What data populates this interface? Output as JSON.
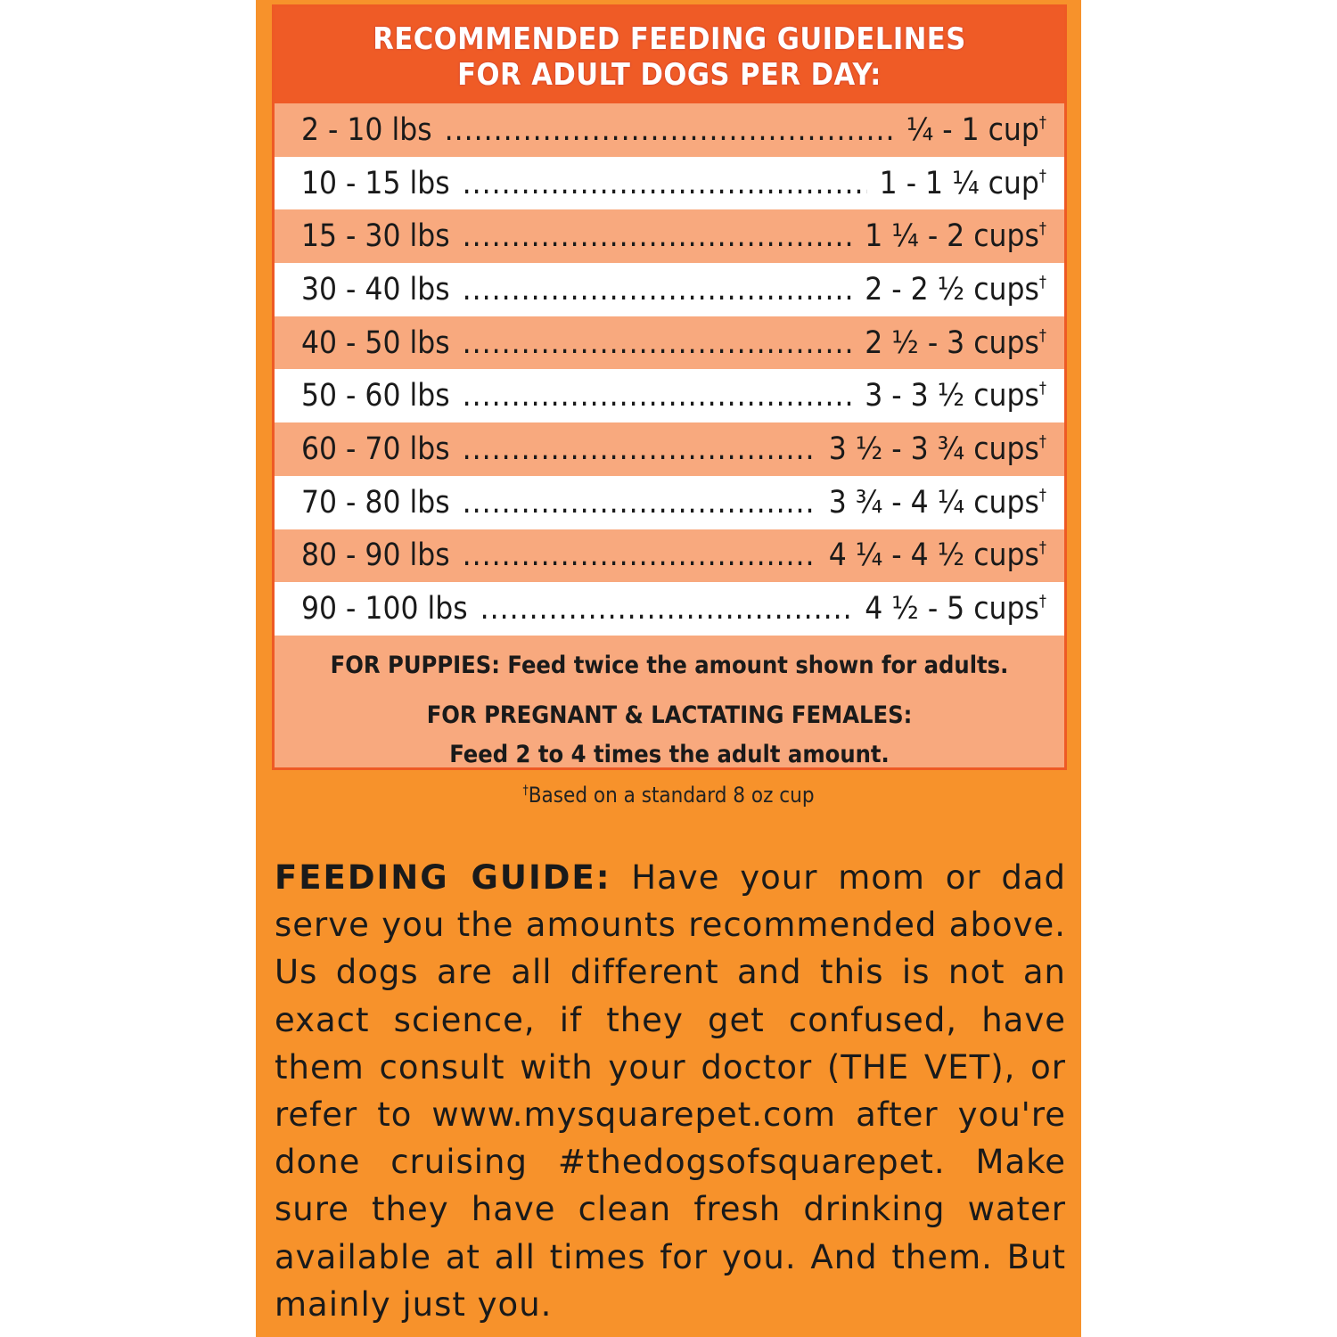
{
  "header": {
    "line1": "RECOMMENDED FEEDING GUIDELINES",
    "line2": "FOR ADULT DOGS PER DAY:"
  },
  "rows": [
    {
      "weight": "2 - 10 lbs",
      "amount": "¼ - 1 cup",
      "mark": "†"
    },
    {
      "weight": "10 - 15 lbs",
      "amount": "1 - 1 ¼ cup",
      "mark": "†"
    },
    {
      "weight": "15 - 30 lbs",
      "amount": "1 ¼ - 2 cups",
      "mark": "†"
    },
    {
      "weight": "30 - 40 lbs",
      "amount": "2 - 2 ½ cups",
      "mark": "†"
    },
    {
      "weight": "40 - 50 lbs",
      "amount": "2 ½ - 3 cups",
      "mark": "†"
    },
    {
      "weight": "50 - 60 lbs",
      "amount": "3 - 3 ½ cups",
      "mark": "†"
    },
    {
      "weight": "60 - 70 lbs",
      "amount": "3 ½ - 3 ¾ cups",
      "mark": "†"
    },
    {
      "weight": "70 - 80 lbs",
      "amount": "3 ¾ - 4 ¼ cups",
      "mark": "†"
    },
    {
      "weight": "80 - 90 lbs",
      "amount": "4 ¼ - 4 ½ cups",
      "mark": "†"
    },
    {
      "weight": "90 - 100 lbs",
      "amount": "4 ½ - 5 cups",
      "mark": "†"
    }
  ],
  "notes": {
    "puppies": "FOR PUPPIES: Feed twice the amount shown for adults.",
    "pregnant_title": "FOR PREGNANT & LACTATING FEMALES:",
    "pregnant_text": "Feed 2 to 4 times the adult amount."
  },
  "footnote": {
    "mark": "†",
    "text": "Based on a standard 8 oz cup"
  },
  "guide": {
    "label": "FEEDING GUIDE:",
    "text": "Have your mom or dad serve you the amounts recommended above. Us dogs are all different and this is not an exact science, if they get confused, have them consult with your doctor (THE VET), or refer to www.mysquarepet.com after you're done cruising #thedogsofsquarepet. Make sure they have clean fresh drinking water available at all times for you. And them. But mainly just you."
  },
  "colors": {
    "panel": "#F7922B",
    "header": "#EF5B26",
    "row_peach": "#F8A97E",
    "row_white": "#FFFFFF"
  }
}
